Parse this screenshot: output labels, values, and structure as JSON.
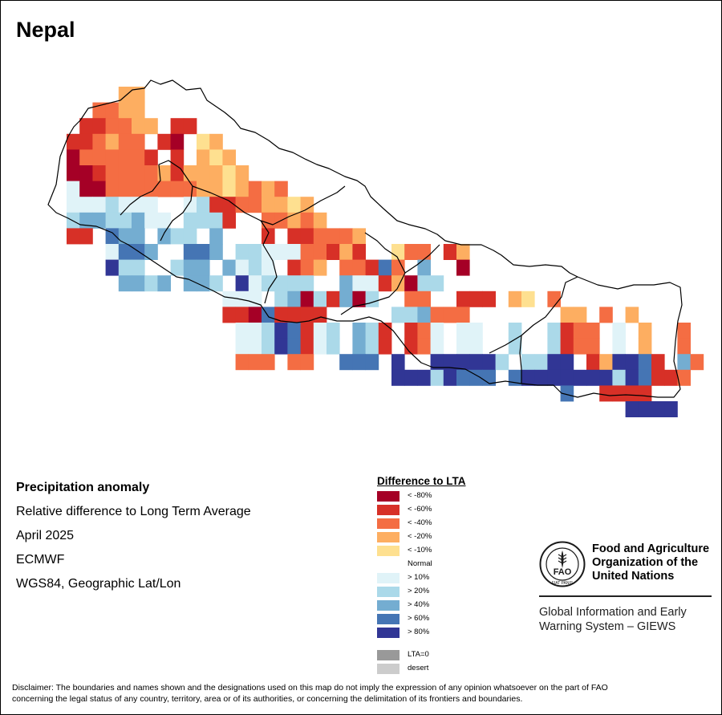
{
  "map": {
    "title": "Nepal",
    "no_data_color": "#ffffff",
    "grid_rows": [
      "....DD.........................................",
      "..CCDD.........................................",
      ".BBCCDD.BB.....................................",
      "BBCDCC.BA.ED...................................",
      "ACCCCCB.B.DED..................................",
      "AABCCCCDBDDDED.................................",
      "fAACCCCCCCDDEDCDC..............................",
      "fffgfff..fgBBCCDDED............................",
      "ghhgghff.gggB..CCDCD...........................",
      "BB.ihh.hgg.h...B.BBCCCD........................",
      "...fiih..iih.ggfffCCBDB..ECC.BD................",
      "...jgg..ghh.hfgf.BCD.CCBiC.h..A................",
      "....hhgh.hhg.jfgggg..hffBDAgg.................",
      "..........fff.ghAgBhAg..CC..BBB.DE.C...........",
      "..........BBAiBBBB.....gghCCC.......DD.C.D.....",
      "...........ffgjiBfg.hgB.BCf.ff..g..gBCC.f.D..C..",
      "...........ffgjiBfg.hgB.BCf.ff..g..gBCC.f.D..C..",
      "...........CCC.CC..iii.j..jjjjjg.ggjj.BDjjiB.hC.",
      ".......................jjjgjiii.ijjjjjjjgjiBBC..",
      "....................................i..BBBB....",
      ".........................................jjjj.."
    ],
    "palette": {
      "A": "#a50026",
      "B": "#d73027",
      "C": "#f46d43",
      "D": "#fdae61",
      "E": "#fee090",
      "f": "#e0f3f8",
      "g": "#abd9e9",
      "h": "#74add1",
      "i": "#4575b4",
      "j": "#313695"
    }
  },
  "info": {
    "heading": "Precipitation anomaly",
    "subtitle": "Relative difference to Long Term Average",
    "period": "April 2025",
    "source": "ECMWF",
    "projection": "WGS84, Geographic Lat/Lon"
  },
  "legend": {
    "title": "Difference to LTA",
    "items": [
      {
        "label": "< -80%",
        "color": "#a50026"
      },
      {
        "label": "< -60%",
        "color": "#d73027"
      },
      {
        "label": "< -40%",
        "color": "#f46d43"
      },
      {
        "label": "< -20%",
        "color": "#fdae61"
      },
      {
        "label": "< -10%",
        "color": "#fee090"
      },
      {
        "label": "Normal",
        "color": "#ffffff"
      },
      {
        "label": "> 10%",
        "color": "#e0f3f8"
      },
      {
        "label": "> 20%",
        "color": "#abd9e9"
      },
      {
        "label": "> 40%",
        "color": "#74add1"
      },
      {
        "label": "> 60%",
        "color": "#4575b4"
      },
      {
        "label": "> 80%",
        "color": "#313695"
      }
    ],
    "extra": [
      {
        "label": "LTA=0",
        "color": "#999999"
      },
      {
        "label": "desert",
        "color": "#cccccc"
      }
    ]
  },
  "fao": {
    "logo_letters": "FAO",
    "logo_motto": "FIAT PANIS",
    "org_line1": "Food and Agriculture",
    "org_line2": "Organization of the",
    "org_line3": "United Nations",
    "system_line1": "Global Information and Early",
    "system_line2": "Warning System – GIEWS"
  },
  "disclaimer": {
    "line1": "Disclaimer: The boundaries and names shown and the designations used on this map do not imply the expression of any opinion whatsoever on the part of FAO",
    "line2": "concerning the legal status of any country, territory, area or of its authorities, or concerning the delimitation of its frontiers and boundaries."
  }
}
